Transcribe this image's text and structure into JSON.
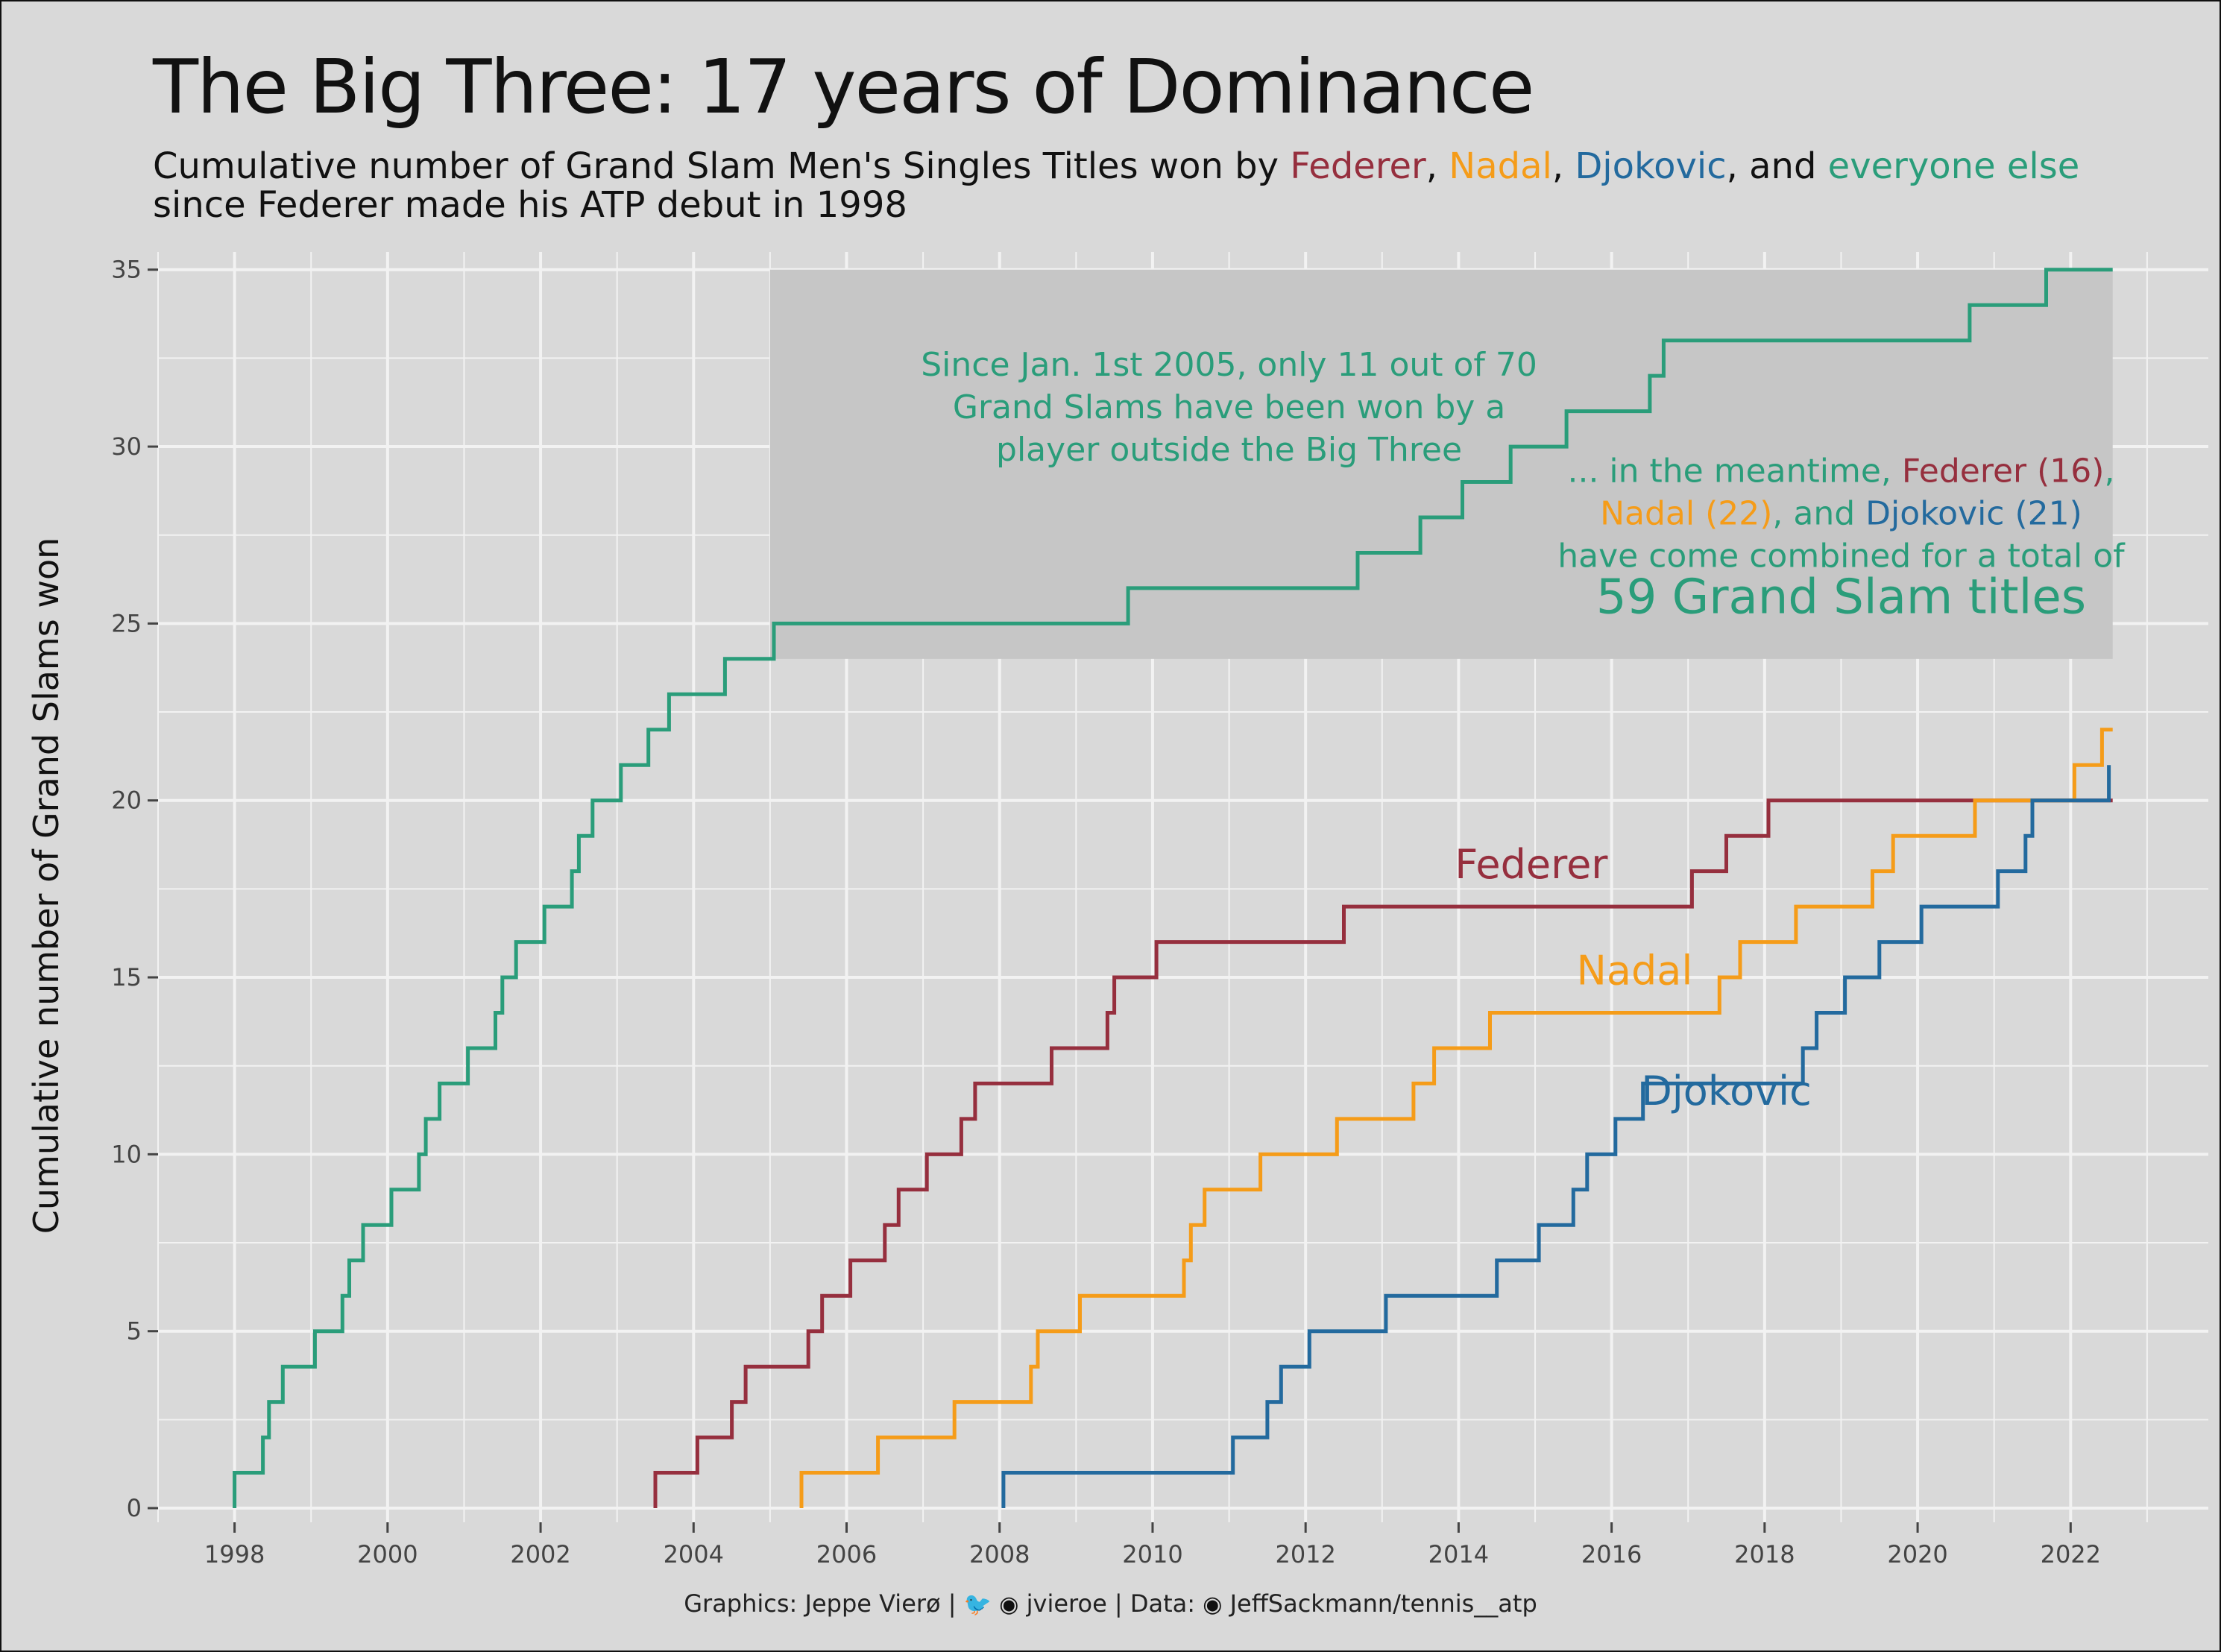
{
  "title": "The Big Three: 17 years of Dominance",
  "subtitle": {
    "prefix": "Cumulative number of Grand Slam Men's Singles Titles won by ",
    "federer": "Federer",
    "sep1": ", ",
    "nadal": "Nadal",
    "sep2": ", ",
    "djokovic": "Djokovic",
    "sep3": ", and ",
    "else": "everyone else",
    "line2": "since Federer made his ATP debut in 1998"
  },
  "caption": {
    "graphics": "Graphics: Jeppe Vierø | ",
    "twitter_icon": "twitter-icon",
    "github_icon": "github-icon",
    "handle": " jvieroe | Data: ",
    "repo": " JeffSackmann/tennis__atp"
  },
  "colors": {
    "background": "#d9d9d9",
    "grid": "#f2f2f2",
    "federer": "#962f3e",
    "nadal": "#f59c19",
    "djokovic": "#236a9e",
    "everyone_else": "#2a9d7a",
    "highlight_box": "#c6c6c6"
  },
  "chart_data": {
    "type": "line",
    "step": true,
    "xlabel": "",
    "ylabel": "Cumulative number of Grand Slams won",
    "xlim": [
      1997.0,
      2023.8
    ],
    "ylim": [
      -0.4,
      35.5
    ],
    "x_ticks": [
      1998,
      2000,
      2002,
      2004,
      2006,
      2008,
      2010,
      2012,
      2014,
      2016,
      2018,
      2020,
      2022
    ],
    "y_ticks": [
      0,
      5,
      10,
      15,
      20,
      25,
      30,
      35
    ],
    "grid": true,
    "legend": "none",
    "series": [
      {
        "name": "everyone else",
        "color_key": "everyone_else",
        "points": [
          [
            1998.0,
            0
          ],
          [
            1998.0,
            1
          ],
          [
            1998.37,
            1
          ],
          [
            1998.37,
            2
          ],
          [
            1998.45,
            2
          ],
          [
            1998.45,
            3
          ],
          [
            1998.63,
            3
          ],
          [
            1998.63,
            4
          ],
          [
            1999.05,
            4
          ],
          [
            1999.05,
            5
          ],
          [
            1999.41,
            5
          ],
          [
            1999.41,
            6
          ],
          [
            1999.5,
            6
          ],
          [
            1999.5,
            7
          ],
          [
            1999.68,
            7
          ],
          [
            1999.68,
            8
          ],
          [
            2000.05,
            8
          ],
          [
            2000.05,
            9
          ],
          [
            2000.41,
            9
          ],
          [
            2000.41,
            10
          ],
          [
            2000.5,
            10
          ],
          [
            2000.5,
            11
          ],
          [
            2000.68,
            11
          ],
          [
            2000.68,
            12
          ],
          [
            2001.05,
            12
          ],
          [
            2001.05,
            13
          ],
          [
            2001.41,
            13
          ],
          [
            2001.41,
            14
          ],
          [
            2001.5,
            14
          ],
          [
            2001.5,
            15
          ],
          [
            2001.68,
            15
          ],
          [
            2001.68,
            16
          ],
          [
            2002.05,
            16
          ],
          [
            2002.05,
            17
          ],
          [
            2002.41,
            17
          ],
          [
            2002.41,
            18
          ],
          [
            2002.5,
            18
          ],
          [
            2002.5,
            19
          ],
          [
            2002.68,
            19
          ],
          [
            2002.68,
            20
          ],
          [
            2003.05,
            20
          ],
          [
            2003.05,
            21
          ],
          [
            2003.41,
            21
          ],
          [
            2003.41,
            22
          ],
          [
            2003.68,
            22
          ],
          [
            2003.68,
            23
          ],
          [
            2004.41,
            23
          ],
          [
            2004.41,
            24
          ],
          [
            2005.05,
            24
          ],
          [
            2005.05,
            25
          ],
          [
            2009.68,
            25
          ],
          [
            2009.68,
            26
          ],
          [
            2012.68,
            26
          ],
          [
            2012.68,
            27
          ],
          [
            2013.5,
            27
          ],
          [
            2013.5,
            28
          ],
          [
            2014.05,
            28
          ],
          [
            2014.05,
            29
          ],
          [
            2014.68,
            29
          ],
          [
            2014.68,
            30
          ],
          [
            2015.41,
            30
          ],
          [
            2015.41,
            31
          ],
          [
            2016.5,
            31
          ],
          [
            2016.5,
            32
          ],
          [
            2016.68,
            32
          ],
          [
            2016.68,
            33
          ],
          [
            2020.68,
            33
          ],
          [
            2020.68,
            34
          ],
          [
            2021.68,
            34
          ],
          [
            2021.68,
            35
          ],
          [
            2022.55,
            35
          ]
        ]
      },
      {
        "name": "Federer",
        "color_key": "federer",
        "points": [
          [
            2003.5,
            0
          ],
          [
            2003.5,
            1
          ],
          [
            2004.05,
            1
          ],
          [
            2004.05,
            2
          ],
          [
            2004.5,
            2
          ],
          [
            2004.5,
            3
          ],
          [
            2004.68,
            3
          ],
          [
            2004.68,
            4
          ],
          [
            2005.5,
            4
          ],
          [
            2005.5,
            5
          ],
          [
            2005.68,
            5
          ],
          [
            2005.68,
            6
          ],
          [
            2006.05,
            6
          ],
          [
            2006.05,
            7
          ],
          [
            2006.5,
            7
          ],
          [
            2006.5,
            8
          ],
          [
            2006.68,
            8
          ],
          [
            2006.68,
            9
          ],
          [
            2007.05,
            9
          ],
          [
            2007.05,
            10
          ],
          [
            2007.5,
            10
          ],
          [
            2007.5,
            11
          ],
          [
            2007.68,
            11
          ],
          [
            2007.68,
            12
          ],
          [
            2008.68,
            12
          ],
          [
            2008.68,
            13
          ],
          [
            2009.41,
            13
          ],
          [
            2009.41,
            14
          ],
          [
            2009.5,
            14
          ],
          [
            2009.5,
            15
          ],
          [
            2010.05,
            15
          ],
          [
            2010.05,
            16
          ],
          [
            2012.5,
            16
          ],
          [
            2012.5,
            17
          ],
          [
            2017.05,
            17
          ],
          [
            2017.05,
            18
          ],
          [
            2017.5,
            18
          ],
          [
            2017.5,
            19
          ],
          [
            2018.05,
            19
          ],
          [
            2018.05,
            20
          ],
          [
            2022.55,
            20
          ]
        ]
      },
      {
        "name": "Nadal",
        "color_key": "nadal",
        "points": [
          [
            2005.41,
            0
          ],
          [
            2005.41,
            1
          ],
          [
            2006.41,
            1
          ],
          [
            2006.41,
            2
          ],
          [
            2007.41,
            2
          ],
          [
            2007.41,
            3
          ],
          [
            2008.41,
            3
          ],
          [
            2008.41,
            4
          ],
          [
            2008.5,
            4
          ],
          [
            2008.5,
            5
          ],
          [
            2009.05,
            5
          ],
          [
            2009.05,
            6
          ],
          [
            2010.41,
            6
          ],
          [
            2010.41,
            7
          ],
          [
            2010.5,
            7
          ],
          [
            2010.5,
            8
          ],
          [
            2010.68,
            8
          ],
          [
            2010.68,
            9
          ],
          [
            2011.41,
            9
          ],
          [
            2011.41,
            10
          ],
          [
            2012.41,
            10
          ],
          [
            2012.41,
            11
          ],
          [
            2013.41,
            11
          ],
          [
            2013.41,
            12
          ],
          [
            2013.68,
            12
          ],
          [
            2013.68,
            13
          ],
          [
            2014.41,
            13
          ],
          [
            2014.41,
            14
          ],
          [
            2017.41,
            14
          ],
          [
            2017.41,
            15
          ],
          [
            2017.68,
            15
          ],
          [
            2017.68,
            16
          ],
          [
            2018.41,
            16
          ],
          [
            2018.41,
            17
          ],
          [
            2019.41,
            17
          ],
          [
            2019.41,
            18
          ],
          [
            2019.68,
            18
          ],
          [
            2019.68,
            19
          ],
          [
            2020.75,
            19
          ],
          [
            2020.75,
            20
          ],
          [
            2022.05,
            20
          ],
          [
            2022.05,
            21
          ],
          [
            2022.41,
            21
          ],
          [
            2022.41,
            22
          ],
          [
            2022.55,
            22
          ]
        ]
      },
      {
        "name": "Djokovic",
        "color_key": "djokovic",
        "points": [
          [
            2008.05,
            0
          ],
          [
            2008.05,
            1
          ],
          [
            2011.05,
            1
          ],
          [
            2011.05,
            2
          ],
          [
            2011.5,
            2
          ],
          [
            2011.5,
            3
          ],
          [
            2011.68,
            3
          ],
          [
            2011.68,
            4
          ],
          [
            2012.05,
            4
          ],
          [
            2012.05,
            5
          ],
          [
            2013.05,
            5
          ],
          [
            2013.05,
            6
          ],
          [
            2014.5,
            6
          ],
          [
            2014.5,
            7
          ],
          [
            2015.05,
            7
          ],
          [
            2015.05,
            8
          ],
          [
            2015.5,
            8
          ],
          [
            2015.5,
            9
          ],
          [
            2015.68,
            9
          ],
          [
            2015.68,
            10
          ],
          [
            2016.05,
            10
          ],
          [
            2016.05,
            11
          ],
          [
            2016.41,
            11
          ],
          [
            2016.41,
            12
          ],
          [
            2018.5,
            12
          ],
          [
            2018.5,
            13
          ],
          [
            2018.68,
            13
          ],
          [
            2018.68,
            14
          ],
          [
            2019.05,
            14
          ],
          [
            2019.05,
            15
          ],
          [
            2019.5,
            15
          ],
          [
            2019.5,
            16
          ],
          [
            2020.05,
            16
          ],
          [
            2020.05,
            17
          ],
          [
            2021.05,
            17
          ],
          [
            2021.05,
            18
          ],
          [
            2021.41,
            18
          ],
          [
            2021.41,
            19
          ],
          [
            2021.5,
            19
          ],
          [
            2021.5,
            20
          ],
          [
            2022.5,
            20
          ],
          [
            2022.5,
            21
          ]
        ]
      }
    ],
    "series_labels": [
      {
        "text": "Federer",
        "x": 2014.95,
        "y": 17.8,
        "color_key": "federer"
      },
      {
        "text": "Nadal",
        "x": 2016.3,
        "y": 14.8,
        "color_key": "nadal"
      },
      {
        "text": "Djokovic",
        "x": 2017.5,
        "y": 11.4,
        "color_key": "djokovic"
      }
    ],
    "highlight_box": {
      "x": [
        2005.0,
        2022.55
      ],
      "y": [
        24.0,
        35.0
      ]
    },
    "annotations": [
      {
        "anchor_x": 2011.0,
        "anchor_y": 32.0,
        "lines": [
          [
            {
              "text": "Since Jan. 1st 2005, only 11 out of 70",
              "color_key": "everyone_else"
            }
          ],
          [
            {
              "text": "Grand Slams have been won by a",
              "color_key": "everyone_else"
            }
          ],
          [
            {
              "text": "player outside the Big Three",
              "color_key": "everyone_else"
            }
          ]
        ]
      },
      {
        "anchor_x": 2019.0,
        "anchor_y": 29.0,
        "lines": [
          [
            {
              "text": "... in the meantime, ",
              "color_key": "everyone_else"
            },
            {
              "text": "Federer (16)",
              "color_key": "federer"
            },
            {
              "text": ",",
              "color_key": "everyone_else"
            }
          ],
          [
            {
              "text": "Nadal (22)",
              "color_key": "nadal"
            },
            {
              "text": ", and ",
              "color_key": "everyone_else"
            },
            {
              "text": "Djokovic (21)",
              "color_key": "djokovic"
            }
          ],
          [
            {
              "text": "have come combined for a total of",
              "color_key": "everyone_else"
            }
          ],
          [
            {
              "text": "59 Grand Slam titles",
              "color_key": "everyone_else",
              "emphasis": true
            }
          ]
        ]
      }
    ]
  }
}
